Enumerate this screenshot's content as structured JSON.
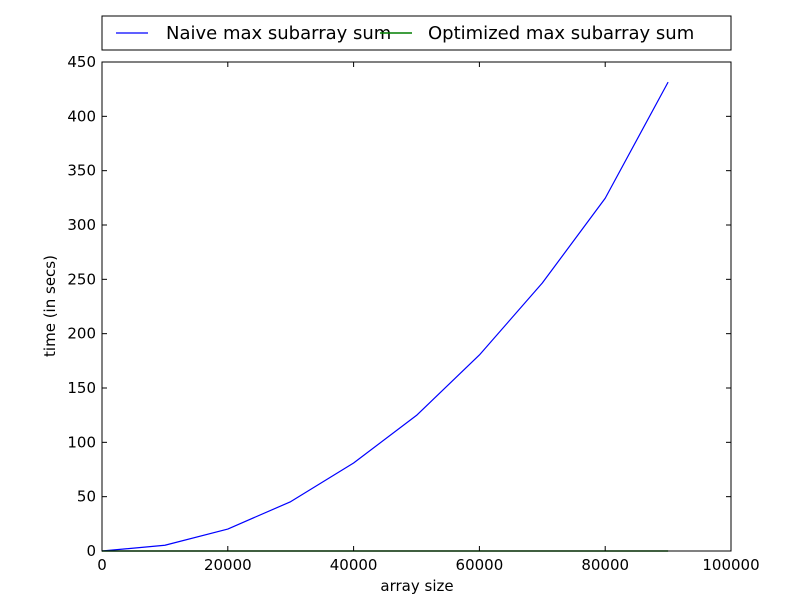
{
  "chart_data": {
    "type": "line",
    "xlabel": "array size",
    "ylabel": "time (in secs)",
    "xlim": [
      0,
      100000
    ],
    "ylim": [
      0,
      450
    ],
    "xticks": [
      0,
      20000,
      40000,
      60000,
      80000,
      100000
    ],
    "xtick_labels": [
      "0",
      "20000",
      "40000",
      "60000",
      "80000",
      "100000"
    ],
    "yticks": [
      0,
      50,
      100,
      150,
      200,
      250,
      300,
      350,
      400,
      450
    ],
    "ytick_labels": [
      "0",
      "50",
      "100",
      "150",
      "200",
      "250",
      "300",
      "350",
      "400",
      "450"
    ],
    "grid": false,
    "legend_position": "top, above plot",
    "series": [
      {
        "name": "Naive max subarray sum",
        "color": "#0000ff",
        "x": [
          0,
          10000,
          20000,
          30000,
          40000,
          50000,
          60000,
          70000,
          80000,
          90000
        ],
        "y": [
          0,
          5.3,
          20.2,
          45.4,
          81.0,
          124.8,
          180.4,
          246.6,
          324.6,
          431.5
        ]
      },
      {
        "name": "Optimized max subarray sum",
        "color": "#007f00",
        "x": [
          0,
          10000,
          20000,
          30000,
          40000,
          50000,
          60000,
          70000,
          80000,
          90000
        ],
        "y": [
          0,
          0.003,
          0.006,
          0.009,
          0.012,
          0.015,
          0.018,
          0.021,
          0.024,
          0.027
        ]
      }
    ]
  }
}
